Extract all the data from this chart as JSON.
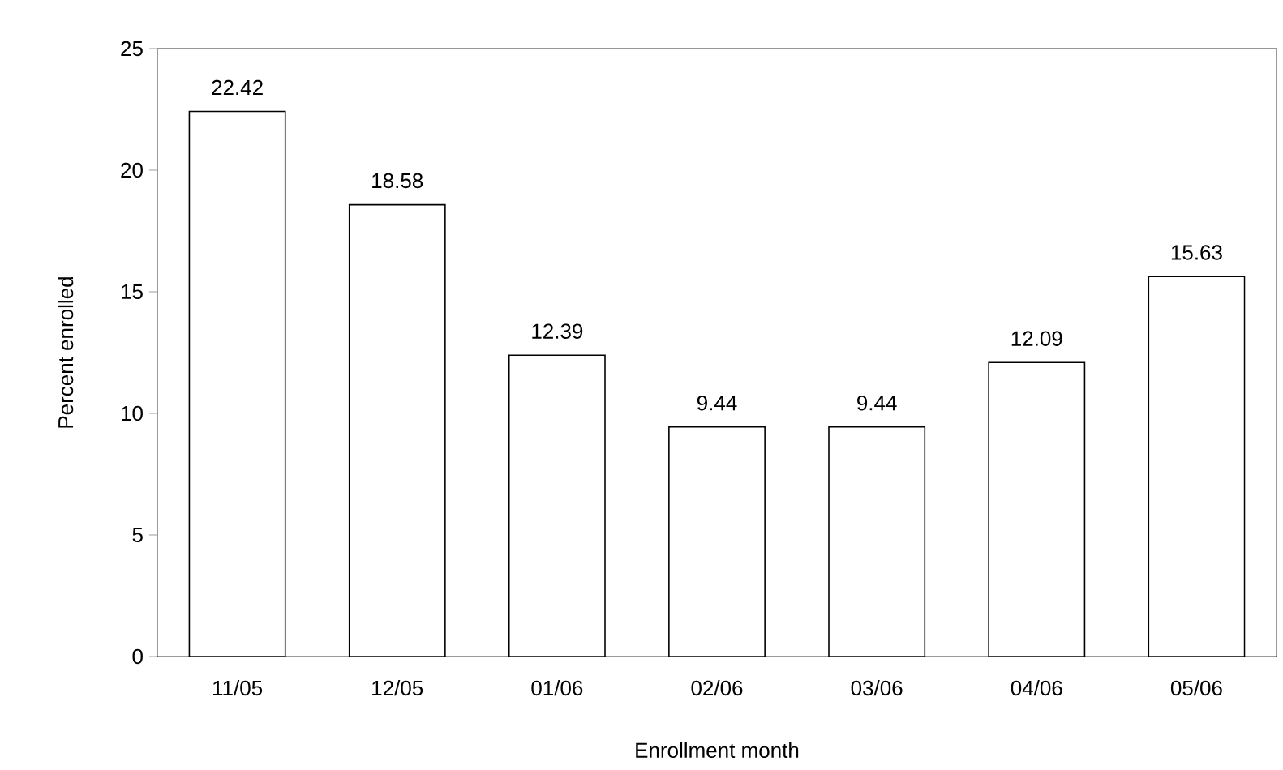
{
  "chart_data": {
    "type": "bar",
    "xlabel": "Enrollment month",
    "ylabel": "Percent enrolled",
    "categories": [
      "11/05",
      "12/05",
      "01/06",
      "02/06",
      "03/06",
      "04/06",
      "05/06"
    ],
    "values": [
      22.42,
      18.58,
      12.39,
      9.44,
      9.44,
      12.09,
      15.63
    ],
    "color": "#ffffff",
    "ylim": [
      0,
      25
    ],
    "yticks": [
      0,
      5,
      10,
      15,
      20,
      25
    ],
    "data_labels": true,
    "grid": false
  }
}
